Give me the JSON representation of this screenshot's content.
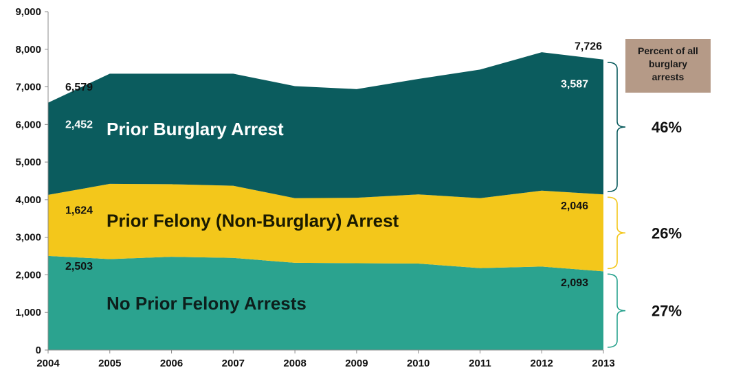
{
  "chart_data": {
    "type": "area",
    "stacked": true,
    "x": [
      2004,
      2005,
      2006,
      2007,
      2008,
      2009,
      2010,
      2011,
      2012,
      2013
    ],
    "x_tick_labels": [
      "2004",
      "2005",
      "2006",
      "2007",
      "2008",
      "2009",
      "2010",
      "2011",
      "2012",
      "2013"
    ],
    "ylim": [
      0,
      9000
    ],
    "y_ticks": [
      0,
      1000,
      2000,
      3000,
      4000,
      5000,
      6000,
      7000,
      8000,
      9000
    ],
    "y_tick_labels": [
      "0",
      "1,000",
      "2,000",
      "3,000",
      "4,000",
      "5,000",
      "6,000",
      "7,000",
      "8,000",
      "9,000"
    ],
    "grid": false,
    "series": [
      {
        "name": "No Prior Felony Arrests",
        "color": "#2ba38f",
        "label_color": "#0d1f1c",
        "values": [
          2503,
          2420,
          2480,
          2450,
          2320,
          2310,
          2300,
          2180,
          2220,
          2093
        ]
      },
      {
        "name": "Prior Felony (Non-Burglary) Arrest",
        "color": "#f3c71b",
        "label_color": "#1a1a00",
        "values": [
          1624,
          2000,
          1930,
          1920,
          1720,
          1740,
          1840,
          1860,
          2020,
          2046
        ]
      },
      {
        "name": "Prior Burglary Arrest",
        "color": "#0b5c5e",
        "label_color": "#ffffff",
        "values": [
          2452,
          2930,
          2940,
          2980,
          2980,
          2890,
          3070,
          3420,
          3680,
          3587
        ]
      }
    ],
    "data_labels": [
      {
        "text": "6,579",
        "x": 2004,
        "color": "#111111"
      },
      {
        "text": "2,452",
        "x": 2004,
        "color": "#ffffff"
      },
      {
        "text": "1,624",
        "x": 2004,
        "color": "#111111"
      },
      {
        "text": "2,503",
        "x": 2004,
        "color": "#111111"
      },
      {
        "text": "7,726",
        "x": 2013,
        "color": "#111111"
      },
      {
        "text": "3,587",
        "x": 2013,
        "color": "#ffffff"
      },
      {
        "text": "2,046",
        "x": 2013,
        "color": "#111111"
      },
      {
        "text": "2,093",
        "x": 2013,
        "color": "#111111"
      }
    ],
    "percent_box": {
      "title_lines": [
        "Percent of all",
        "burglary",
        "arrests"
      ],
      "color": "#b59a87"
    },
    "percentages": [
      {
        "series": "Prior Burglary Arrest",
        "text": "46%"
      },
      {
        "series": "Prior Felony (Non-Burglary) Arrest",
        "text": "26%"
      },
      {
        "series": "No Prior Felony Arrests",
        "text": "27%"
      }
    ]
  }
}
